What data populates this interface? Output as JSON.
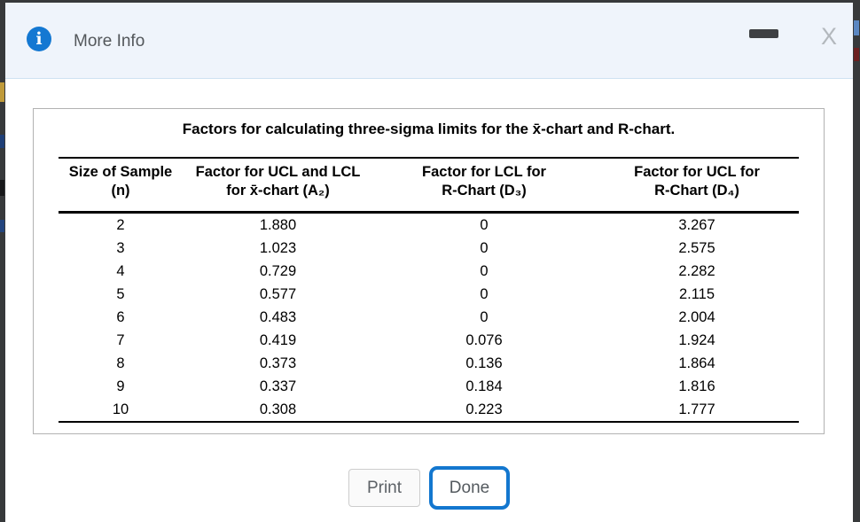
{
  "dialog": {
    "title": "More Info",
    "icons": {
      "info": "i",
      "close": "X"
    },
    "colors": {
      "accent_blue": "#1478d2",
      "header_bg": "#eff4fb",
      "done_border": "#1377cf",
      "page_behind": "#37393b"
    }
  },
  "table": {
    "title": "Factors for calculating three-sigma limits for the x̄-chart and R-chart.",
    "columns": [
      {
        "line1": "Size of Sample",
        "line2": "(n)"
      },
      {
        "line1": "Factor for UCL and LCL",
        "line2": "for x̄-chart (A₂)"
      },
      {
        "line1": "Factor for LCL for",
        "line2": "R-Chart (D₃)"
      },
      {
        "line1": "Factor for UCL for",
        "line2": "R-Chart (D₄)"
      }
    ],
    "rows": [
      [
        "2",
        "1.880",
        "0",
        "3.267"
      ],
      [
        "3",
        "1.023",
        "0",
        "2.575"
      ],
      [
        "4",
        "0.729",
        "0",
        "2.282"
      ],
      [
        "5",
        "0.577",
        "0",
        "2.115"
      ],
      [
        "6",
        "0.483",
        "0",
        "2.004"
      ],
      [
        "7",
        "0.419",
        "0.076",
        "1.924"
      ],
      [
        "8",
        "0.373",
        "0.136",
        "1.864"
      ],
      [
        "9",
        "0.337",
        "0.184",
        "1.816"
      ],
      [
        "10",
        "0.308",
        "0.223",
        "1.777"
      ]
    ]
  },
  "buttons": {
    "print": "Print",
    "done": "Done"
  }
}
